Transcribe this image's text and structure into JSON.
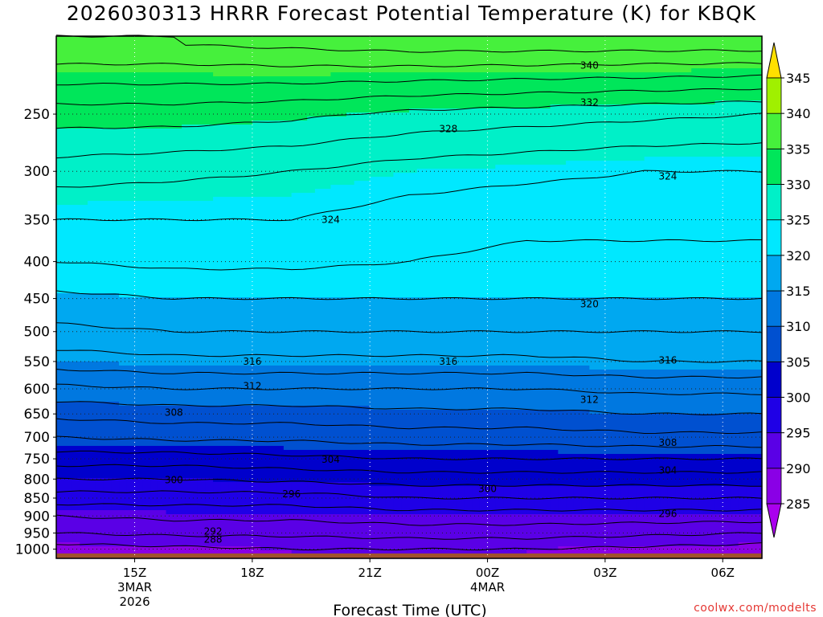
{
  "title": "2026030313 HRRR Forecast Potential Temperature (K) for KBQK",
  "credit": "coolwx.com/modelts",
  "chart_data": {
    "type": "heatmap",
    "title": "2026030313 HRRR Forecast Potential Temperature (K) for KBQK",
    "xlabel": "Forecast Time (UTC)",
    "ylabel": "",
    "y_scale": "log-pressure (hPa), inverted",
    "ylim": [
      1030,
      195
    ],
    "xlim_hours_from_init": [
      0,
      18
    ],
    "grid": "dotted",
    "y_ticks": [
      "250",
      "300",
      "350",
      "400",
      "450",
      "500",
      "550",
      "600",
      "650",
      "700",
      "750",
      "800",
      "850",
      "900",
      "950",
      "1000"
    ],
    "y_tick_values": [
      250,
      300,
      350,
      400,
      450,
      500,
      550,
      600,
      650,
      700,
      750,
      800,
      850,
      900,
      950,
      1000
    ],
    "x_ticks": [
      {
        "hour": 2,
        "label": "15Z",
        "sub1": "3MAR",
        "sub2": "2026"
      },
      {
        "hour": 5,
        "label": "18Z",
        "sub1": "",
        "sub2": ""
      },
      {
        "hour": 8,
        "label": "21Z",
        "sub1": "",
        "sub2": ""
      },
      {
        "hour": 11,
        "label": "00Z",
        "sub1": "4MAR",
        "sub2": ""
      },
      {
        "hour": 14,
        "label": "03Z",
        "sub1": "",
        "sub2": ""
      },
      {
        "hour": 17,
        "label": "06Z",
        "sub1": "",
        "sub2": ""
      }
    ],
    "colorbar": {
      "ticks": [
        "285",
        "290",
        "295",
        "300",
        "305",
        "310",
        "315",
        "320",
        "325",
        "330",
        "335",
        "340",
        "345"
      ],
      "levels": [
        285,
        290,
        295,
        300,
        305,
        310,
        315,
        320,
        325,
        330,
        335,
        340,
        345
      ],
      "colors": [
        "#8a00e6",
        "#5a00e6",
        "#1f00e6",
        "#0000cc",
        "#0050d0",
        "#0078e0",
        "#00a8f0",
        "#00e8ff",
        "#00f0c8",
        "#00e65a",
        "#46f03c",
        "#a0f000",
        "#dcf000"
      ],
      "under_color": "#aa00ee",
      "over_color": "#ffe000"
    },
    "ground_color": "#a0522d",
    "hours": [
      0,
      3,
      6,
      9,
      12,
      15,
      18
    ],
    "theta_profiles": [
      {
        "pressure": 1000,
        "values": [
          289,
          289.5,
          290,
          290,
          290,
          289.5,
          289
        ]
      },
      {
        "pressure": 950,
        "values": [
          292,
          292.5,
          292.5,
          293,
          293,
          292.5,
          292
        ]
      },
      {
        "pressure": 900,
        "values": [
          294,
          294.5,
          294.5,
          295,
          295,
          295,
          295
        ]
      },
      {
        "pressure": 850,
        "values": [
          297,
          297,
          297,
          298,
          298,
          298,
          298
        ]
      },
      {
        "pressure": 800,
        "values": [
          300,
          300,
          300.5,
          301,
          301,
          301,
          301
        ]
      },
      {
        "pressure": 750,
        "values": [
          303,
          303,
          303.5,
          304,
          304,
          304,
          304
        ]
      },
      {
        "pressure": 700,
        "values": [
          306,
          306.5,
          306.5,
          307,
          307,
          307.5,
          307.5
        ]
      },
      {
        "pressure": 650,
        "values": [
          308.5,
          309,
          309,
          309.5,
          309.5,
          310,
          310
        ]
      },
      {
        "pressure": 600,
        "values": [
          311.5,
          312,
          312,
          312,
          312,
          312.5,
          312.5
        ]
      },
      {
        "pressure": 550,
        "values": [
          315,
          315.5,
          315.5,
          315.5,
          315.5,
          316,
          316
        ]
      },
      {
        "pressure": 500,
        "values": [
          317.5,
          318,
          318,
          318,
          318,
          318,
          318
        ]
      },
      {
        "pressure": 450,
        "values": [
          319.5,
          320,
          320,
          320,
          320,
          320,
          320
        ]
      },
      {
        "pressure": 400,
        "values": [
          322,
          322.5,
          322.5,
          322,
          321.5,
          321.5,
          321.5
        ]
      },
      {
        "pressure": 350,
        "values": [
          324,
          324,
          324,
          323,
          322.5,
          322.5,
          322.5
        ]
      },
      {
        "pressure": 300,
        "values": [
          327,
          326.5,
          326,
          325,
          324.5,
          324,
          324
        ]
      },
      {
        "pressure": 250,
        "values": [
          331,
          331,
          330.5,
          329.5,
          329,
          328.5,
          328
        ]
      },
      {
        "pressure": 200,
        "values": [
          338,
          338,
          338.5,
          339,
          339,
          339,
          339
        ]
      }
    ],
    "contour_labels": [
      {
        "text": "340",
        "hour": 13.6,
        "pressure": 214
      },
      {
        "text": "332",
        "hour": 13.6,
        "pressure": 241
      },
      {
        "text": "328",
        "hour": 10.0,
        "pressure": 262
      },
      {
        "text": "324",
        "hour": 15.6,
        "pressure": 305
      },
      {
        "text": "324",
        "hour": 7.0,
        "pressure": 350
      },
      {
        "text": "320",
        "hour": 13.6,
        "pressure": 458
      },
      {
        "text": "316",
        "hour": 5.0,
        "pressure": 550
      },
      {
        "text": "316",
        "hour": 10.0,
        "pressure": 550
      },
      {
        "text": "316",
        "hour": 15.6,
        "pressure": 548
      },
      {
        "text": "312",
        "hour": 5.0,
        "pressure": 595
      },
      {
        "text": "312",
        "hour": 13.6,
        "pressure": 621
      },
      {
        "text": "308",
        "hour": 3.0,
        "pressure": 647
      },
      {
        "text": "308",
        "hour": 15.6,
        "pressure": 712
      },
      {
        "text": "304",
        "hour": 7.0,
        "pressure": 752
      },
      {
        "text": "304",
        "hour": 15.6,
        "pressure": 778
      },
      {
        "text": "300",
        "hour": 3.0,
        "pressure": 802
      },
      {
        "text": "300",
        "hour": 11.0,
        "pressure": 825
      },
      {
        "text": "296",
        "hour": 6.0,
        "pressure": 839
      },
      {
        "text": "296",
        "hour": 15.6,
        "pressure": 894
      },
      {
        "text": "292",
        "hour": 4.0,
        "pressure": 945
      },
      {
        "text": "288",
        "hour": 4.0,
        "pressure": 970
      }
    ]
  }
}
